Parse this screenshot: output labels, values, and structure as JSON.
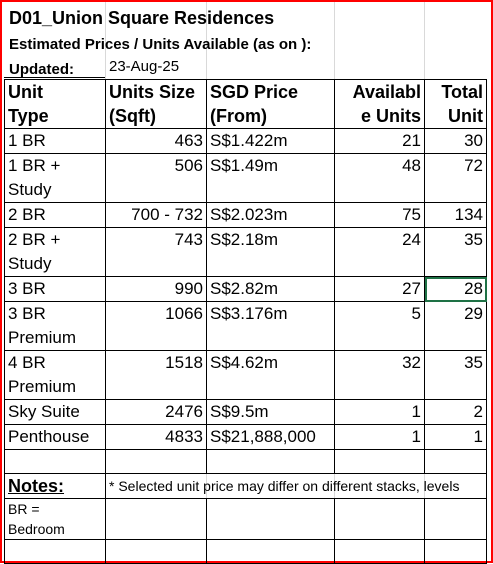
{
  "title": "D01_Union Square Residences",
  "subtitle": "Estimated Prices / Units Available (as on ):",
  "updated_label": "Updated:",
  "updated_date": "23-Aug-25",
  "headers": {
    "unit_type": [
      "Unit",
      "Type"
    ],
    "units_size": [
      "Units Size",
      "(Sqft)"
    ],
    "price": [
      "SGD Price",
      "(From)"
    ],
    "available": [
      "Availabl",
      "e Units"
    ],
    "total": [
      "Total",
      "Unit"
    ]
  },
  "rows": [
    {
      "type": [
        "1 BR"
      ],
      "size": "463",
      "price": "S$1.422m",
      "available": "21",
      "total": "30"
    },
    {
      "type": [
        "1 BR +",
        "Study"
      ],
      "size": "506",
      "price": "S$1.49m",
      "available": "48",
      "total": "72"
    },
    {
      "type": [
        "2 BR"
      ],
      "size": "700 - 732",
      "price": "S$2.023m",
      "available": "75",
      "total": "134"
    },
    {
      "type": [
        "2 BR +",
        "Study"
      ],
      "size": "743",
      "price": "S$2.18m",
      "available": "24",
      "total": "35"
    },
    {
      "type": [
        "3 BR"
      ],
      "size": "990",
      "price": "S$2.82m",
      "available": "27",
      "total": "28"
    },
    {
      "type": [
        "3 BR",
        "Premium"
      ],
      "size": "1066",
      "price": "S$3.176m",
      "available": "5",
      "total": "29"
    },
    {
      "type": [
        "4 BR",
        "Premium"
      ],
      "size": "1518",
      "price": "S$4.62m",
      "available": "32",
      "total": "35"
    },
    {
      "type": [
        "Sky Suite"
      ],
      "size": "2476",
      "price": "S$9.5m",
      "available": "1",
      "total": "2"
    },
    {
      "type": [
        "Penthouse"
      ],
      "size": "4833",
      "price": "S$21,888,000",
      "available": "1",
      "total": "1"
    }
  ],
  "notes_label": "Notes:",
  "note_text": "* Selected unit price may differ on different stacks, levels",
  "br_note": [
    "BR =",
    "Bedroom"
  ],
  "colors": {
    "frame": "#ff0000",
    "selection": "#1e7145"
  }
}
